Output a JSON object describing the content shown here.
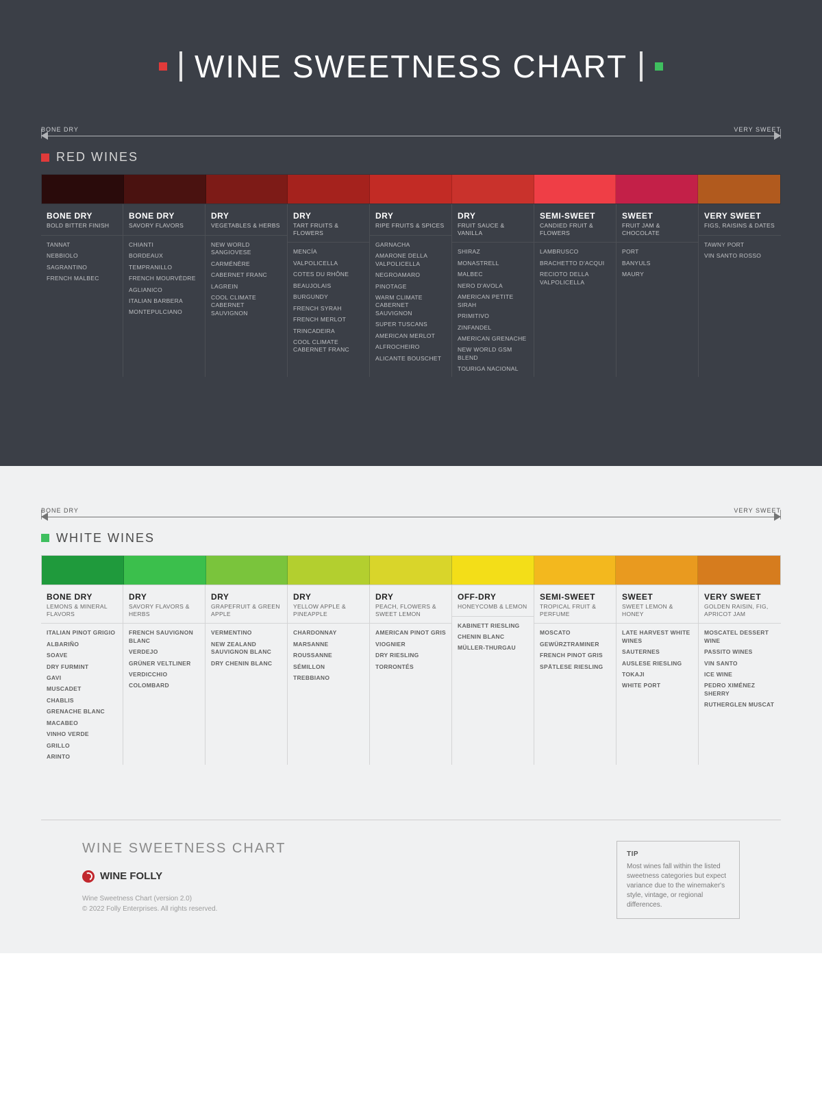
{
  "title": "WINE SWEETNESS CHART",
  "title_squares": {
    "left": "#e03a3a",
    "right": "#3fbf5f"
  },
  "scale_labels": {
    "left": "BONE DRY",
    "right": "VERY SWEET"
  },
  "red": {
    "section_label": "RED WINES",
    "section_square": "#e03a3a",
    "columns": [
      {
        "swatch": "#2a0b0b",
        "heading": "BONE DRY",
        "sub": "BOLD BITTER FINISH",
        "wines": [
          "TANNAT",
          "NEBBIOLO",
          "SAGRANTINO",
          "FRENCH MALBEC"
        ]
      },
      {
        "swatch": "#4a1210",
        "heading": "BONE DRY",
        "sub": "SAVORY FLAVORS",
        "wines": [
          "CHIANTI",
          "BORDEAUX",
          "TEMPRANILLO",
          "FRENCH MOURVÈDRE",
          "AGLIANICO",
          "ITALIAN BARBERA",
          "MONTEPULCIANO"
        ]
      },
      {
        "swatch": "#7d1b17",
        "heading": "DRY",
        "sub": "VEGETABLES & HERBS",
        "wines": [
          "NEW WORLD SANGIOVESE",
          "CARMÉNÈRE",
          "CABERNET FRANC",
          "LAGREIN",
          "COOL CLIMATE CABERNET SAUVIGNON"
        ]
      },
      {
        "swatch": "#a5221d",
        "heading": "DRY",
        "sub": "TART FRUITS & FLOWERS",
        "wines": [
          "MENCÍA",
          "VALPOLICELLA",
          "COTES DU RHÔNE",
          "BEAUJOLAIS",
          "BURGUNDY",
          "FRENCH SYRAH",
          "FRENCH MERLOT",
          "TRINCADEIRA",
          "COOL CLIMATE CABERNET FRANC"
        ]
      },
      {
        "swatch": "#c22b25",
        "heading": "DRY",
        "sub": "RIPE FRUITS & SPICES",
        "wines": [
          "GARNACHA",
          "AMARONE DELLA VALPOLICELLA",
          "NEGROAMARO",
          "PINOTAGE",
          "WARM CLIMATE CABERNET SAUVIGNON",
          "SUPER TUSCANS",
          "AMERICAN MERLOT",
          "ALFROCHEIRO",
          "ALICANTE BOUSCHET"
        ]
      },
      {
        "swatch": "#c9322c",
        "heading": "DRY",
        "sub": "FRUIT SAUCE & VANILLA",
        "wines": [
          "SHIRAZ",
          "MONASTRELL",
          "MALBEC",
          "NERO D'AVOLA",
          "AMERICAN PETITE SIRAH",
          "PRIMITIVO",
          "ZINFANDEL",
          "AMERICAN GRENACHE",
          "NEW WORLD GSM BLEND",
          "TOURIGA NACIONAL"
        ]
      },
      {
        "swatch": "#ef3e46",
        "heading": "SEMI-SWEET",
        "sub": "CANDIED FRUIT & FLOWERS",
        "wines": [
          "LAMBRUSCO",
          "BRACHETTO D'ACQUI",
          "RECIOTO DELLA VALPOLICELLA"
        ]
      },
      {
        "swatch": "#c32048",
        "heading": "SWEET",
        "sub": "FRUIT JAM & CHOCOLATE",
        "wines": [
          "PORT",
          "BANYULS",
          "MAURY"
        ]
      },
      {
        "swatch": "#b15a1e",
        "heading": "VERY SWEET",
        "sub": "FIGS, RAISINS & DATES",
        "wines": [
          "TAWNY PORT",
          "VIN SANTO ROSSO"
        ]
      }
    ]
  },
  "white": {
    "section_label": "WHITE WINES",
    "section_square": "#3fbf5f",
    "columns": [
      {
        "swatch": "#1f9a3c",
        "heading": "BONE DRY",
        "sub": "LEMONS & MINERAL FLAVORS",
        "wines": [
          "ITALIAN PINOT GRIGIO",
          "ALBARIÑO",
          "SOAVE",
          "DRY FURMINT",
          "GAVI",
          "MUSCADET",
          "CHABLIS",
          "GRENACHE BLANC",
          "MACABEO",
          "VINHO VERDE",
          "GRILLO",
          "ARINTO"
        ]
      },
      {
        "swatch": "#3bbf4c",
        "heading": "DRY",
        "sub": "SAVORY FLAVORS & HERBS",
        "wines": [
          "FRENCH SAUVIGNON BLANC",
          "VERDEJO",
          "GRÜNER VELTLINER",
          "VERDICCHIO",
          "COLOMBARD"
        ]
      },
      {
        "swatch": "#7ac43c",
        "heading": "DRY",
        "sub": "GRAPEFRUIT & GREEN APPLE",
        "wines": [
          "VERMENTINO",
          "NEW ZEALAND SAUVIGNON BLANC",
          "DRY CHENIN BLANC"
        ]
      },
      {
        "swatch": "#b3cf2f",
        "heading": "DRY",
        "sub": "YELLOW APPLE & PINEAPPLE",
        "wines": [
          "CHARDONNAY",
          "MARSANNE",
          "ROUSSANNE",
          "SÉMILLON",
          "TREBBIANO"
        ]
      },
      {
        "swatch": "#d9d52a",
        "heading": "DRY",
        "sub": "PEACH, FLOWERS & SWEET LEMON",
        "wines": [
          "AMERICAN PINOT GRIS",
          "VIOGNIER",
          "DRY RIESLING",
          "TORRONTÉS"
        ]
      },
      {
        "swatch": "#f3de18",
        "heading": "OFF-DRY",
        "sub": "HONEYCOMB & LEMON",
        "wines": [
          "KABINETT RIESLING",
          "CHENIN BLANC",
          "MÜLLER-THURGAU"
        ]
      },
      {
        "swatch": "#f3b81e",
        "heading": "SEMI-SWEET",
        "sub": "TROPICAL FRUIT & PERFUME",
        "wines": [
          "MOSCATO",
          "GEWÜRZTRAMINER",
          "FRENCH PINOT GRIS",
          "SPÄTLESE RIESLING"
        ]
      },
      {
        "swatch": "#e99a1f",
        "heading": "SWEET",
        "sub": "SWEET LEMON & HONEY",
        "wines": [
          "LATE HARVEST WHITE WINES",
          "SAUTERNES",
          "AUSLESE RIESLING",
          "TOKAJI",
          "WHITE PORT"
        ]
      },
      {
        "swatch": "#d67c1e",
        "heading": "VERY SWEET",
        "sub": "GOLDEN RAISIN, FIG, APRICOT JAM",
        "wines": [
          "MOSCATEL DESSERT WINE",
          "PASSITO WINES",
          "VIN SANTO",
          "ICE WINE",
          "PEDRO XIMÉNEZ SHERRY",
          "RUTHERGLEN MUSCAT"
        ]
      }
    ]
  },
  "footer": {
    "title": "WINE SWEETNESS CHART",
    "brand": "WINE FOLLY",
    "meta1": "Wine Sweetness Chart (version 2.0)",
    "meta2": "© 2022 Folly Enterprises. All rights reserved.",
    "tip_label": "TIP",
    "tip_text": "Most wines fall within the listed sweetness categories but expect variance due to the winemaker's style, vintage, or regional differences."
  }
}
